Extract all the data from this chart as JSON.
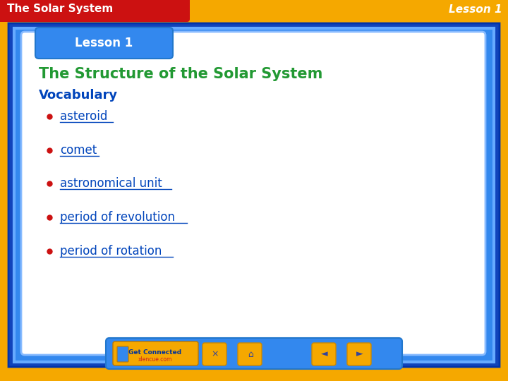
{
  "bg_color": "#F5A800",
  "header_bar_color": "#CC1111",
  "header_text": "The Solar System",
  "header_text_color": "#FFFFFF",
  "lesson_label_top_right": "Lesson 1",
  "lesson_label_color": "#FFFFFF",
  "outer_frame_color": "#1144BB",
  "inner_frame_color": "#3388EE",
  "inner_frame2_color": "#66AAFF",
  "content_bg_color": "#FFFFFF",
  "content_border_color": "#88BBFF",
  "lesson_badge_color": "#3388EE",
  "lesson_badge_text": "Lesson 1",
  "lesson_badge_text_color": "#FFFFFF",
  "main_title": "The Structure of the Solar System",
  "main_title_color": "#229933",
  "vocab_label": "Vocabulary",
  "vocab_label_color": "#0044BB",
  "bullet_color": "#CC1111",
  "bullet_items": [
    "asteroid",
    "comet",
    "astronomical unit",
    "period of revolution",
    "period of rotation"
  ],
  "bullet_text_color": "#0044BB",
  "bottom_bar_color": "#3388EE",
  "get_connected_text": "Get Connected",
  "get_connected_subtext": "xlencue.com",
  "get_connected_bg": "#F5A800",
  "nav_icon_bg": "#F5A800",
  "nav_icon_border": "#CC8800"
}
